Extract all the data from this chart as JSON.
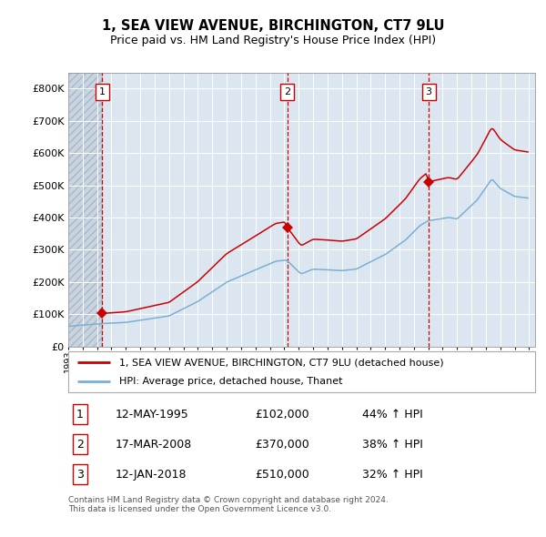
{
  "title": "1, SEA VIEW AVENUE, BIRCHINGTON, CT7 9LU",
  "subtitle": "Price paid vs. HM Land Registry's House Price Index (HPI)",
  "legend_line1": "1, SEA VIEW AVENUE, BIRCHINGTON, CT7 9LU (detached house)",
  "legend_line2": "HPI: Average price, detached house, Thanet",
  "red_color": "#cc0000",
  "blue_color": "#7ab0d4",
  "background_color": "#dce6f0",
  "sale_prices": [
    102000,
    370000,
    510000
  ],
  "sale_labels": [
    "1",
    "2",
    "3"
  ],
  "table_rows": [
    [
      "1",
      "12-MAY-1995",
      "£102,000",
      "44% ↑ HPI"
    ],
    [
      "2",
      "17-MAR-2008",
      "£370,000",
      "38% ↑ HPI"
    ],
    [
      "3",
      "12-JAN-2018",
      "£510,000",
      "32% ↑ HPI"
    ]
  ],
  "footer": "Contains HM Land Registry data © Crown copyright and database right 2024.\nThis data is licensed under the Open Government Licence v3.0.",
  "ylim": [
    0,
    850000
  ],
  "yticks": [
    0,
    100000,
    200000,
    300000,
    400000,
    500000,
    600000,
    700000,
    800000
  ],
  "ytick_labels": [
    "£0",
    "£100K",
    "£200K",
    "£300K",
    "£400K",
    "£500K",
    "£600K",
    "£700K",
    "£800K"
  ]
}
